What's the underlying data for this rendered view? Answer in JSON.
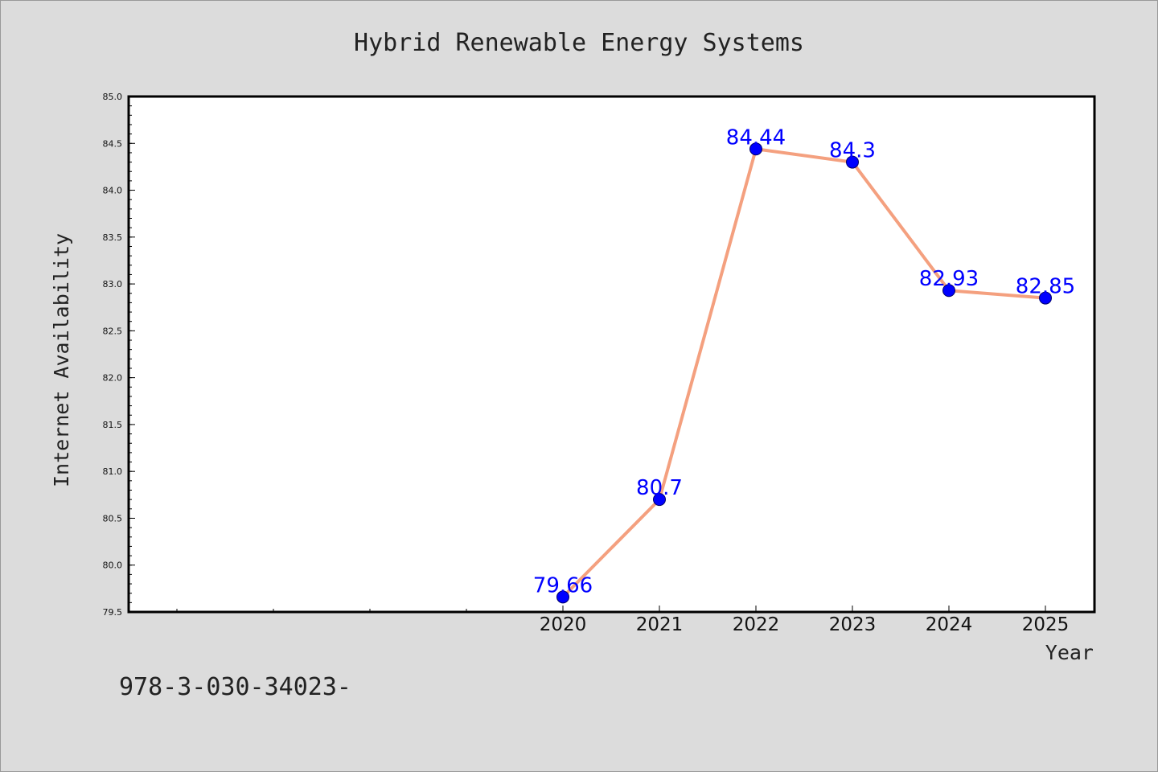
{
  "chart_data": {
    "type": "line",
    "title": "Hybrid Renewable Energy Systems",
    "xlabel": "Year",
    "ylabel": "Internet Availability",
    "categories": [
      "2020",
      "2021",
      "2022",
      "2023",
      "2024",
      "2025"
    ],
    "series": [
      {
        "values": [
          79.66,
          80.7,
          84.44,
          84.3,
          82.93,
          82.85
        ]
      }
    ],
    "data_labels": [
      "79.66",
      "80.7",
      "84.44",
      "84.3",
      "82.93",
      "82.85"
    ],
    "ylim": [
      79.5,
      85.0
    ],
    "yticks": [
      "79.5",
      "80.0",
      "80.5",
      "81.0",
      "81.5",
      "82.0",
      "82.5",
      "83.0",
      "83.5",
      "84.0",
      "84.5",
      "85.0"
    ],
    "grid": false,
    "legend": "none",
    "colors": {
      "line": "#f4a07f",
      "marker": "#0000ff",
      "data_label": "#0000ff",
      "background": "#dcdcdc",
      "plot_area": "#ffffff"
    }
  },
  "footer": {
    "text": "978-3-030-34023-"
  }
}
